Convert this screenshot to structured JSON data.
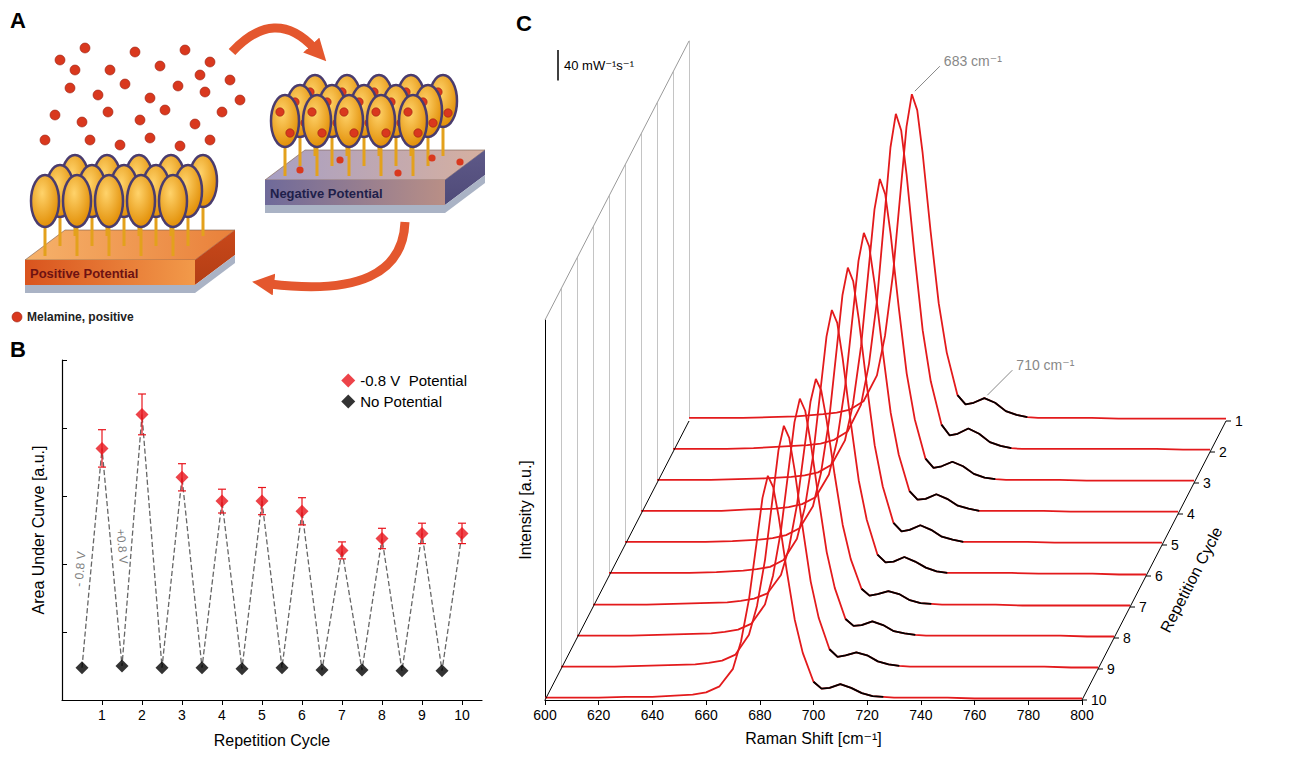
{
  "diagram": {
    "label": "A",
    "left_substrate": "Positive Potential",
    "right_substrate": "Negative Potential",
    "key": "Melamine, positive"
  },
  "chart_data": [
    {
      "type": "scatter",
      "title": "B",
      "x_label": "Repetition Cycle",
      "y_label": "Area Under Curve [a.u.]",
      "xlim": [
        0,
        10.5
      ],
      "xticks": [
        1,
        2,
        3,
        4,
        5,
        6,
        7,
        8,
        9,
        10
      ],
      "ylim": [
        0,
        1
      ],
      "yticks": [
        0,
        0.2,
        0.4,
        0.6,
        0.8,
        1
      ],
      "tick_labels": "x",
      "grid": false,
      "legend": "upper right",
      "line_style": "dashed",
      "annotations": [
        "- 0.8 V",
        "+0.8 V"
      ],
      "series": [
        {
          "name": "-0.8 V  Potential",
          "color": "#e8141c",
          "marker": "diamond",
          "x": [
            1,
            2,
            3,
            4,
            5,
            6,
            7,
            8,
            9,
            10
          ],
          "values": [
            0.74,
            0.84,
            0.655,
            0.585,
            0.585,
            0.555,
            0.44,
            0.475,
            0.49,
            0.49
          ],
          "errors": [
            0.055,
            0.06,
            0.04,
            0.035,
            0.04,
            0.04,
            0.025,
            0.03,
            0.03,
            0.03
          ]
        },
        {
          "name": "No Potential",
          "color": "#000000",
          "marker": "diamond",
          "x": [
            0.5,
            1.5,
            2.5,
            3.5,
            4.5,
            5.5,
            6.5,
            7.5,
            8.5,
            9.5
          ],
          "values": [
            0.095,
            0.1,
            0.095,
            0.095,
            0.092,
            0.095,
            0.088,
            0.088,
            0.086,
            0.086
          ]
        }
      ]
    },
    {
      "type": "line",
      "title": "C",
      "x_label": "Raman Shift [cm⁻¹]",
      "y_label": "Intensity [a.u.]",
      "z_label": "Repetition Cycle",
      "xlim": [
        600,
        800
      ],
      "xticks": [
        600,
        620,
        640,
        660,
        680,
        700,
        720,
        740,
        760,
        780,
        800
      ],
      "ylim": [
        0,
        500
      ],
      "tick_labels": "x",
      "grid": false,
      "scale_bar": {
        "value": 40,
        "label": "40 mW⁻¹s⁻¹"
      },
      "highlight": {
        "range": [
          697,
          727
        ],
        "color": "#000000"
      },
      "annotations": [
        {
          "text": "683 cm⁻¹",
          "x": 683,
          "series": "1"
        },
        {
          "text": "710 cm⁻¹",
          "x": 710,
          "series": "1"
        }
      ],
      "x": [
        600,
        610,
        620,
        630,
        640,
        650,
        655,
        660,
        665,
        670,
        673,
        676,
        679,
        681,
        683,
        685,
        687,
        690,
        693,
        696,
        700,
        703,
        706,
        710,
        714,
        718,
        722,
        726,
        730,
        740,
        750,
        760,
        770,
        780,
        790,
        800
      ],
      "series": [
        {
          "name": "1",
          "color": "#e31a1c",
          "values": [
            4,
            4,
            4,
            5,
            6,
            9,
            11,
            15,
            26,
            60,
            112,
            194,
            310,
            387,
            430,
            409,
            353,
            249,
            155,
            90,
            34,
            22,
            24,
            30,
            24,
            13,
            8,
            5,
            4,
            4,
            4,
            3,
            3,
            3,
            3,
            3
          ]
        },
        {
          "name": "2",
          "color": "#e31a1c",
          "values": [
            4,
            4,
            4,
            5,
            7,
            9,
            11,
            16,
            27,
            62,
            116,
            200,
            320,
            401,
            445,
            423,
            365,
            258,
            160,
            93,
            36,
            22,
            24,
            31,
            24,
            13,
            8,
            5,
            4,
            4,
            4,
            4,
            4,
            4,
            3,
            3
          ]
        },
        {
          "name": "3",
          "color": "#e31a1c",
          "values": [
            4,
            4,
            4,
            5,
            6,
            8,
            10,
            14,
            24,
            56,
            104,
            180,
            288,
            360,
            400,
            380,
            328,
            232,
            144,
            84,
            32,
            20,
            22,
            28,
            22,
            12,
            7,
            5,
            4,
            4,
            4,
            3,
            3,
            3,
            3,
            3
          ]
        },
        {
          "name": "4",
          "color": "#e31a1c",
          "values": [
            4,
            4,
            4,
            4,
            6,
            7,
            9,
            13,
            22,
            52,
            96,
            167,
            266,
            333,
            370,
            352,
            303,
            215,
            133,
            78,
            30,
            19,
            20,
            26,
            20,
            11,
            7,
            4,
            4,
            4,
            4,
            3,
            3,
            3,
            3,
            3
          ]
        },
        {
          "name": "5",
          "color": "#e31a1c",
          "values": [
            4,
            4,
            4,
            4,
            5,
            7,
            9,
            13,
            22,
            51,
            95,
            164,
            263,
            329,
            365,
            347,
            299,
            212,
            131,
            77,
            29,
            18,
            20,
            26,
            20,
            11,
            7,
            4,
            4,
            4,
            4,
            3,
            3,
            3,
            3,
            3
          ]
        },
        {
          "name": "6",
          "color": "#e31a1c",
          "values": [
            4,
            4,
            4,
            4,
            5,
            7,
            9,
            12,
            21,
            49,
            91,
            158,
            252,
            315,
            350,
            333,
            287,
            203,
            126,
            74,
            28,
            18,
            19,
            25,
            19,
            11,
            6,
            4,
            4,
            4,
            4,
            3,
            3,
            3,
            2,
            2
          ]
        },
        {
          "name": "7",
          "color": "#e31a1c",
          "values": [
            3,
            3,
            3,
            4,
            5,
            6,
            8,
            11,
            18,
            42,
            78,
            135,
            216,
            270,
            300,
            285,
            246,
            174,
            108,
            63,
            24,
            15,
            17,
            21,
            17,
            9,
            5,
            4,
            3,
            3,
            3,
            2,
            2,
            2,
            2,
            2
          ]
        },
        {
          "name": "8",
          "color": "#e31a1c",
          "values": [
            3,
            3,
            3,
            4,
            5,
            6,
            8,
            11,
            19,
            44,
            82,
            142,
            227,
            284,
            315,
            299,
            258,
            183,
            113,
            66,
            25,
            16,
            17,
            22,
            17,
            9,
            6,
            4,
            3,
            3,
            3,
            3,
            3,
            3,
            2,
            2
          ]
        },
        {
          "name": "9",
          "color": "#e31a1c",
          "values": [
            3,
            3,
            3,
            4,
            5,
            6,
            8,
            11,
            19,
            45,
            83,
            144,
            230,
            288,
            320,
            304,
            262,
            186,
            115,
            67,
            26,
            16,
            18,
            22,
            18,
            10,
            6,
            4,
            3,
            3,
            3,
            3,
            3,
            3,
            2,
            2
          ]
        },
        {
          "name": "10",
          "color": "#e31a1c",
          "values": [
            3,
            3,
            3,
            4,
            4,
            6,
            7,
            10,
            18,
            41,
            77,
            133,
            212,
            266,
            295,
            280,
            242,
            171,
            106,
            62,
            24,
            15,
            16,
            21,
            16,
            9,
            5,
            4,
            3,
            3,
            3,
            2,
            2,
            2,
            2,
            2
          ]
        }
      ]
    }
  ]
}
